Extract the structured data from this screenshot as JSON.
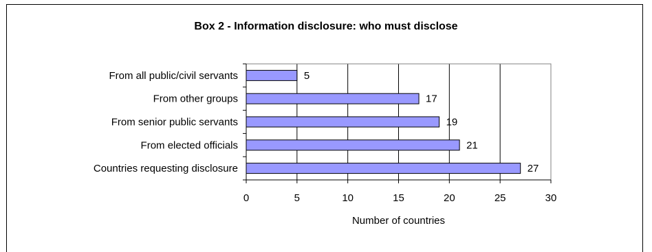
{
  "chart_data": {
    "type": "bar",
    "orientation": "horizontal",
    "title": "Box 2 - Information disclosure:  who must disclose",
    "xlabel": "Number of countries",
    "ylabel": "",
    "categories": [
      "From all public/civil servants",
      "From other groups",
      "From senior public servants",
      "From elected officials",
      "Countries requesting disclosure"
    ],
    "values": [
      5,
      17,
      19,
      21,
      27
    ],
    "xlim": [
      0,
      30
    ],
    "xticks": [
      0,
      5,
      10,
      15,
      20,
      25,
      30
    ],
    "grid": "vertical",
    "legend": "none",
    "colors": {
      "bar_fill": "#9999ff",
      "bar_stroke": "#000000",
      "grid": "#000000",
      "plot_border": "#808080"
    }
  }
}
